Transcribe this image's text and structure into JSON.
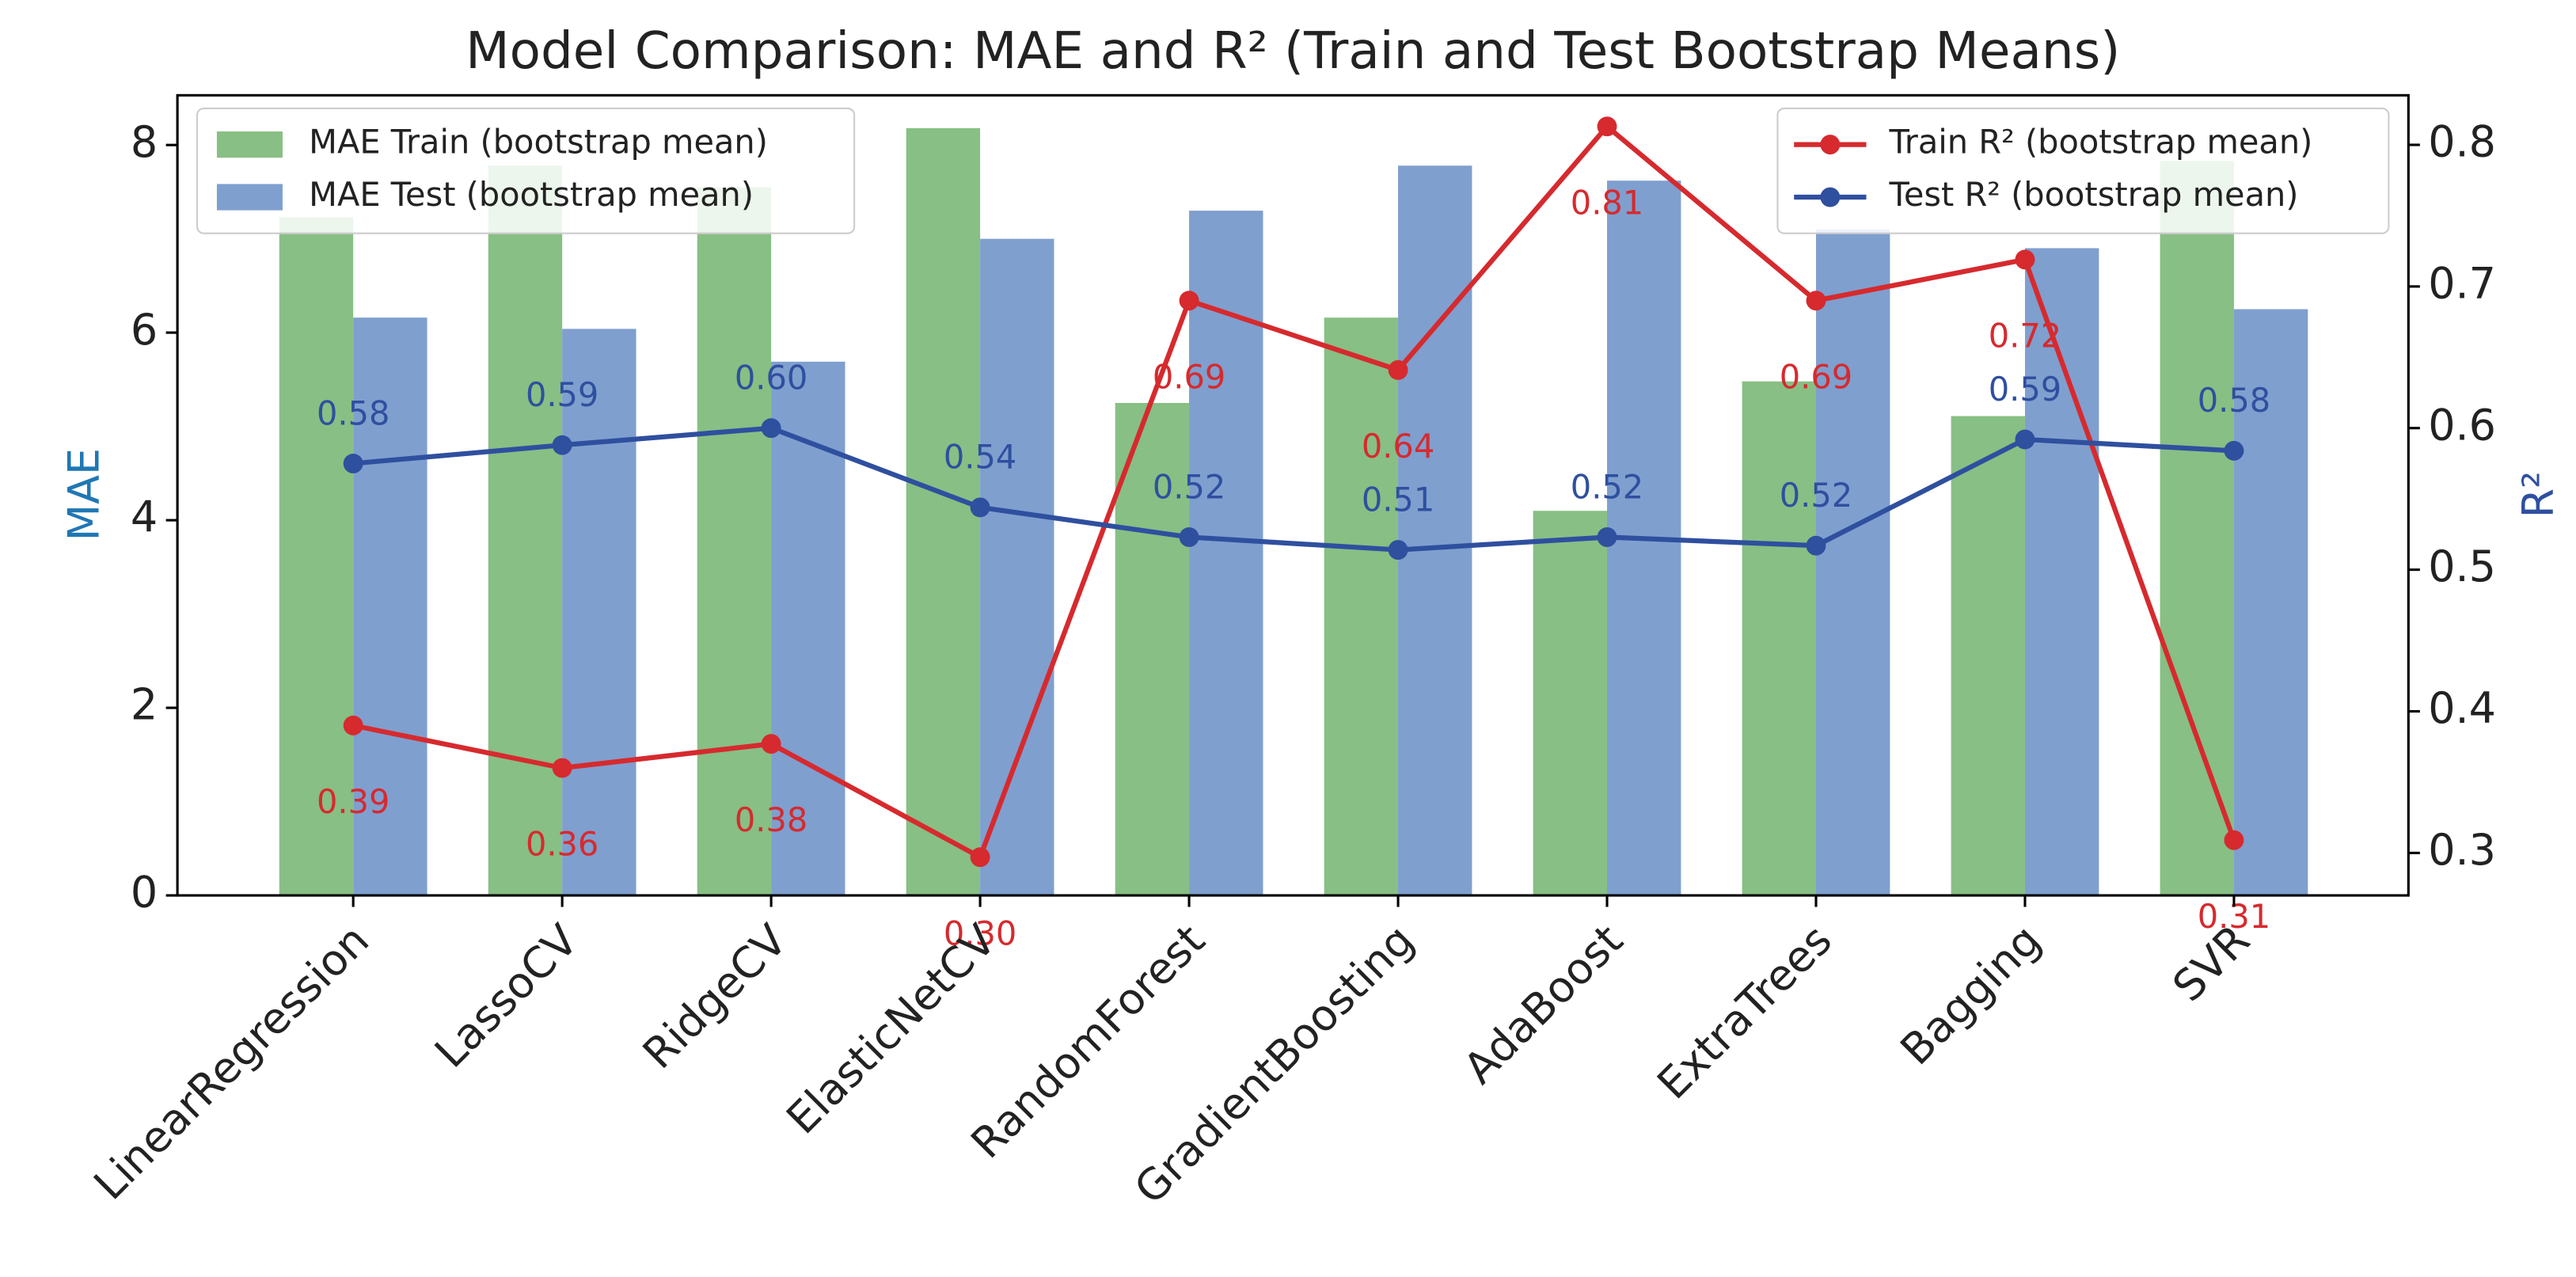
{
  "chart_data": {
    "type": "bar_line",
    "title": "Model Comparison: MAE and R² (Train and Test Bootstrap Means)",
    "ylabel": "MAE",
    "y2label": "R²",
    "categories": [
      "LinearRegression",
      "LassoCV",
      "RidgeCV",
      "ElasticNetCV",
      "RandomForest",
      "GradientBoosting",
      "AdaBoost",
      "ExtraTrees",
      "Bagging",
      "SVR"
    ],
    "ylim": [
      0,
      8.53
    ],
    "yticks": [
      0,
      2,
      4,
      6,
      8
    ],
    "y2lim": [
      0.27,
      0.835
    ],
    "y2ticks": [
      0.3,
      0.4,
      0.5,
      0.6,
      0.7,
      0.8
    ],
    "legend_bars": "upper left",
    "legend_lines": "upper right",
    "series": [
      {
        "name": "MAE Train (bootstrap mean)",
        "kind": "bar",
        "color": "#88bf84",
        "values": [
          7.23,
          7.78,
          7.55,
          8.18,
          5.25,
          6.16,
          4.1,
          5.48,
          5.11,
          7.83
        ]
      },
      {
        "name": "MAE Test (bootstrap mean)",
        "kind": "bar",
        "color": "#7f9fcf",
        "values": [
          6.16,
          6.04,
          5.69,
          7.0,
          7.3,
          7.78,
          7.62,
          7.1,
          6.9,
          6.25
        ]
      },
      {
        "name": "Train R² (bootstrap mean)",
        "kind": "line",
        "axis": "y2",
        "color": "#d62a2e",
        "label_pos": "below",
        "values": [
          0.39,
          0.36,
          0.377,
          0.297,
          0.69,
          0.641,
          0.813,
          0.69,
          0.719,
          0.309
        ],
        "value_labels": [
          "0.39",
          "0.36",
          "0.38",
          "0.30",
          "0.69",
          "0.64",
          "0.81",
          "0.69",
          "0.72",
          "0.31"
        ]
      },
      {
        "name": "Test R² (bootstrap mean)",
        "kind": "line",
        "axis": "y2",
        "color": "#2f4f9f",
        "label_pos": "above",
        "values": [
          0.575,
          0.588,
          0.6,
          0.544,
          0.523,
          0.514,
          0.523,
          0.517,
          0.592,
          0.584
        ],
        "value_labels": [
          "0.58",
          "0.59",
          "0.60",
          "0.54",
          "0.52",
          "0.51",
          "0.52",
          "0.52",
          "0.59",
          "0.58"
        ]
      }
    ]
  }
}
